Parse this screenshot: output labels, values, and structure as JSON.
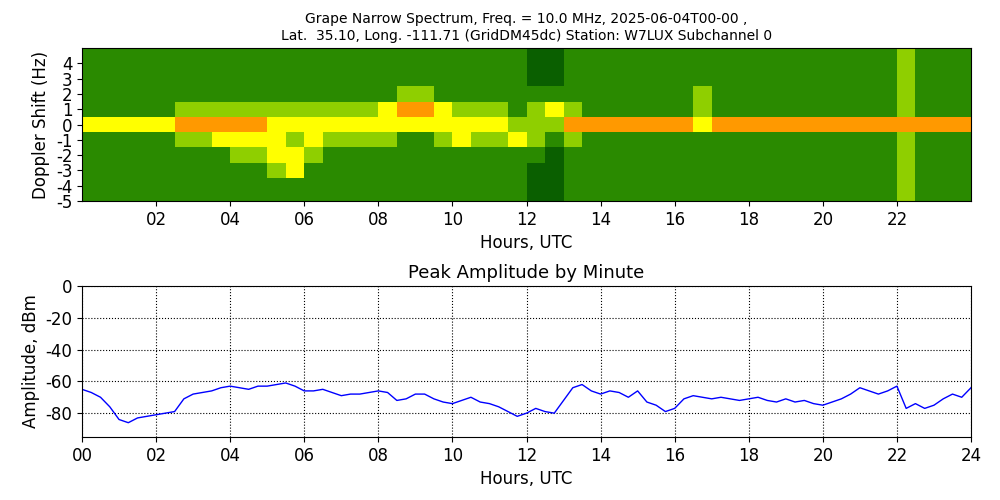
{
  "chart_data": [
    {
      "type": "heatmap",
      "title": "Grape Narrow Spectrum, Freq. = 10.0 MHz, 2025-06-04T00-00 ,\nLat.  35.10, Long. -111.71 (GridDM45dc) Station: W7LUX Subchannel 0",
      "x_label": "Hours, UTC",
      "y_label": "Doppler Shift (Hz)",
      "x": [
        0.25,
        0.75,
        1.25,
        1.75,
        2.25,
        2.75,
        3.25,
        3.75,
        4.25,
        4.75,
        5.25,
        5.75,
        6.25,
        6.75,
        7.25,
        7.75,
        8.25,
        8.75,
        9.25,
        9.75,
        10.25,
        10.75,
        11.25,
        11.75,
        12.25,
        12.75,
        13.25,
        13.75,
        14.25,
        14.75,
        15.25,
        15.75,
        16.25,
        16.75,
        17.25,
        17.75,
        18.25,
        18.75,
        19.25,
        19.75,
        20.25,
        20.75,
        21.25,
        21.75,
        22.25,
        22.75,
        23.25,
        23.75
      ],
      "y": [
        -5,
        -4,
        -3,
        -2,
        -1,
        0,
        1,
        2,
        3,
        4,
        5
      ],
      "cells": [
        [
          1,
          1,
          1,
          1,
          1,
          3,
          1,
          1,
          1,
          1,
          1
        ],
        [
          1,
          1,
          1,
          1,
          1,
          3,
          1,
          1,
          1,
          1,
          1
        ],
        [
          1,
          1,
          1,
          1,
          1,
          3,
          1,
          1,
          1,
          1,
          1
        ],
        [
          1,
          1,
          1,
          1,
          1,
          3,
          1,
          1,
          1,
          1,
          1
        ],
        [
          1,
          1,
          1,
          1,
          1,
          3,
          1,
          1,
          1,
          1,
          1
        ],
        [
          1,
          1,
          1,
          1,
          2,
          4,
          2,
          1,
          1,
          1,
          1
        ],
        [
          1,
          1,
          1,
          1,
          2,
          4,
          2,
          1,
          1,
          1,
          1
        ],
        [
          1,
          1,
          1,
          1,
          3,
          4,
          2,
          1,
          1,
          1,
          1
        ],
        [
          1,
          1,
          1,
          2,
          3,
          4,
          2,
          1,
          1,
          1,
          1
        ],
        [
          1,
          1,
          1,
          2,
          3,
          4,
          2,
          1,
          1,
          1,
          1
        ],
        [
          1,
          1,
          2,
          3,
          3,
          3,
          2,
          1,
          1,
          1,
          1
        ],
        [
          1,
          1,
          3,
          3,
          2,
          3,
          2,
          1,
          1,
          1,
          1
        ],
        [
          1,
          1,
          1,
          2,
          3,
          3,
          2,
          1,
          1,
          1,
          1
        ],
        [
          1,
          1,
          1,
          1,
          2,
          3,
          2,
          1,
          1,
          1,
          1
        ],
        [
          1,
          1,
          1,
          1,
          2,
          3,
          2,
          1,
          1,
          1,
          1
        ],
        [
          1,
          1,
          1,
          1,
          2,
          3,
          2,
          1,
          1,
          1,
          1
        ],
        [
          1,
          1,
          1,
          1,
          2,
          3,
          3,
          1,
          1,
          1,
          1
        ],
        [
          1,
          1,
          1,
          1,
          1,
          3,
          4,
          2,
          1,
          1,
          1
        ],
        [
          1,
          1,
          1,
          1,
          1,
          3,
          4,
          2,
          1,
          1,
          1
        ],
        [
          1,
          1,
          1,
          1,
          2,
          3,
          3,
          1,
          1,
          1,
          1
        ],
        [
          1,
          1,
          1,
          1,
          3,
          3,
          2,
          1,
          1,
          1,
          1
        ],
        [
          1,
          1,
          1,
          1,
          2,
          3,
          2,
          1,
          1,
          1,
          1
        ],
        [
          1,
          1,
          1,
          1,
          2,
          3,
          2,
          1,
          1,
          1,
          1
        ],
        [
          1,
          1,
          1,
          1,
          3,
          2,
          1,
          1,
          1,
          1,
          1
        ],
        [
          0,
          0,
          0,
          1,
          2,
          2,
          2,
          1,
          0,
          0,
          0
        ],
        [
          0,
          0,
          0,
          0,
          1,
          2,
          3,
          1,
          0,
          0,
          0
        ],
        [
          1,
          1,
          1,
          1,
          2,
          4,
          2,
          1,
          1,
          1,
          1
        ],
        [
          1,
          1,
          1,
          1,
          1,
          4,
          1,
          1,
          1,
          1,
          1
        ],
        [
          1,
          1,
          1,
          1,
          1,
          4,
          1,
          1,
          1,
          1,
          1
        ],
        [
          1,
          1,
          1,
          1,
          1,
          4,
          1,
          1,
          1,
          1,
          1
        ],
        [
          1,
          1,
          1,
          1,
          1,
          4,
          1,
          1,
          1,
          1,
          1
        ],
        [
          1,
          1,
          1,
          1,
          1,
          4,
          1,
          1,
          1,
          1,
          1
        ],
        [
          1,
          1,
          1,
          1,
          1,
          4,
          1,
          1,
          1,
          1,
          1
        ],
        [
          1,
          1,
          1,
          1,
          1,
          3,
          2,
          2,
          1,
          1,
          1
        ],
        [
          1,
          1,
          1,
          1,
          1,
          4,
          1,
          1,
          1,
          1,
          1
        ],
        [
          1,
          1,
          1,
          1,
          1,
          4,
          1,
          1,
          1,
          1,
          1
        ],
        [
          1,
          1,
          1,
          1,
          1,
          4,
          1,
          1,
          1,
          1,
          1
        ],
        [
          1,
          1,
          1,
          1,
          1,
          4,
          1,
          1,
          1,
          1,
          1
        ],
        [
          1,
          1,
          1,
          1,
          1,
          4,
          1,
          1,
          1,
          1,
          1
        ],
        [
          1,
          1,
          1,
          1,
          1,
          4,
          1,
          1,
          1,
          1,
          1
        ],
        [
          1,
          1,
          1,
          1,
          1,
          4,
          1,
          1,
          1,
          1,
          1
        ],
        [
          1,
          1,
          1,
          1,
          1,
          4,
          1,
          1,
          1,
          1,
          1
        ],
        [
          1,
          1,
          1,
          1,
          1,
          4,
          1,
          1,
          1,
          1,
          1
        ],
        [
          1,
          1,
          1,
          1,
          1,
          4,
          1,
          1,
          1,
          1,
          1
        ],
        [
          2,
          2,
          2,
          2,
          2,
          4,
          2,
          2,
          2,
          2,
          2
        ],
        [
          1,
          1,
          1,
          1,
          1,
          4,
          1,
          1,
          1,
          1,
          1
        ],
        [
          1,
          1,
          1,
          1,
          1,
          4,
          1,
          1,
          1,
          1,
          1
        ],
        [
          1,
          1,
          1,
          1,
          1,
          4,
          1,
          1,
          1,
          1,
          1
        ]
      ],
      "color_range": [
        0,
        5
      ],
      "xlim": [
        0,
        24
      ],
      "xticks": [
        {
          "value": 2,
          "label": "02"
        },
        {
          "value": 4,
          "label": "04"
        },
        {
          "value": 6,
          "label": "06"
        },
        {
          "value": 8,
          "label": "08"
        },
        10,
        12,
        14,
        16,
        18,
        20,
        22
      ],
      "ylim": [
        -5,
        5
      ],
      "yticks": [
        -5,
        -4,
        -3,
        -2,
        -1,
        0,
        1,
        2,
        3,
        4
      ],
      "grid": false
    },
    {
      "type": "line",
      "title": "Peak Amplitude by Minute",
      "x_label": "Hours, UTC",
      "y_label": "Amplitude, dBm",
      "x": [
        0,
        0.25,
        0.5,
        0.75,
        1,
        1.25,
        1.5,
        1.75,
        2,
        2.25,
        2.5,
        2.75,
        3,
        3.25,
        3.5,
        3.75,
        4,
        4.25,
        4.5,
        4.75,
        5,
        5.25,
        5.5,
        5.75,
        6,
        6.25,
        6.5,
        6.75,
        7,
        7.25,
        7.5,
        7.75,
        8,
        8.25,
        8.5,
        8.75,
        9,
        9.25,
        9.5,
        9.75,
        10,
        10.25,
        10.5,
        10.75,
        11,
        11.25,
        11.5,
        11.75,
        12,
        12.25,
        12.5,
        12.75,
        13,
        13.25,
        13.5,
        13.75,
        14,
        14.25,
        14.5,
        14.75,
        15,
        15.25,
        15.5,
        15.75,
        16,
        16.25,
        16.5,
        16.75,
        17,
        17.25,
        17.5,
        17.75,
        18,
        18.25,
        18.5,
        18.75,
        19,
        19.25,
        19.5,
        19.75,
        20,
        20.25,
        20.5,
        20.75,
        21,
        21.25,
        21.5,
        21.75,
        22,
        22.25,
        22.5,
        22.75,
        23,
        23.25,
        23.5,
        23.75,
        24
      ],
      "values": [
        -65,
        -67,
        -70,
        -76,
        -84,
        -86,
        -83,
        -82,
        -81,
        -80,
        -79,
        -71,
        -68,
        -67,
        -66,
        -64,
        -63,
        -64,
        -65,
        -63,
        -63,
        -62,
        -61,
        -63,
        -66,
        -66,
        -65,
        -67,
        -69,
        -68,
        -68,
        -67,
        -66,
        -67,
        -72,
        -71,
        -68,
        -68,
        -71,
        -73,
        -74,
        -72,
        -70,
        -73,
        -74,
        -76,
        -79,
        -82,
        -80,
        -77,
        -79,
        -80,
        -72,
        -64,
        -62,
        -66,
        -68,
        -66,
        -67,
        -70,
        -66,
        -73,
        -75,
        -79,
        -77,
        -71,
        -69,
        -70,
        -71,
        -70,
        -71,
        -72,
        -71,
        -70,
        -72,
        -73,
        -71,
        -73,
        -72,
        -74,
        -75,
        -73,
        -71,
        -68,
        -64,
        -66,
        -68,
        -66,
        -63,
        -77,
        -74,
        -77,
        -75,
        -71,
        -68,
        -70,
        -64
      ],
      "color": "#0000ff",
      "xlim": [
        0,
        24
      ],
      "xticks": [
        {
          "value": 0,
          "label": "00"
        },
        {
          "value": 2,
          "label": "02"
        },
        {
          "value": 4,
          "label": "04"
        },
        {
          "value": 6,
          "label": "06"
        },
        {
          "value": 8,
          "label": "08"
        },
        10,
        12,
        14,
        16,
        18,
        20,
        22,
        24
      ],
      "ylim": [
        -95,
        0
      ],
      "yticks": [
        -80,
        -60,
        -40,
        -20,
        0
      ],
      "grid": true
    }
  ]
}
